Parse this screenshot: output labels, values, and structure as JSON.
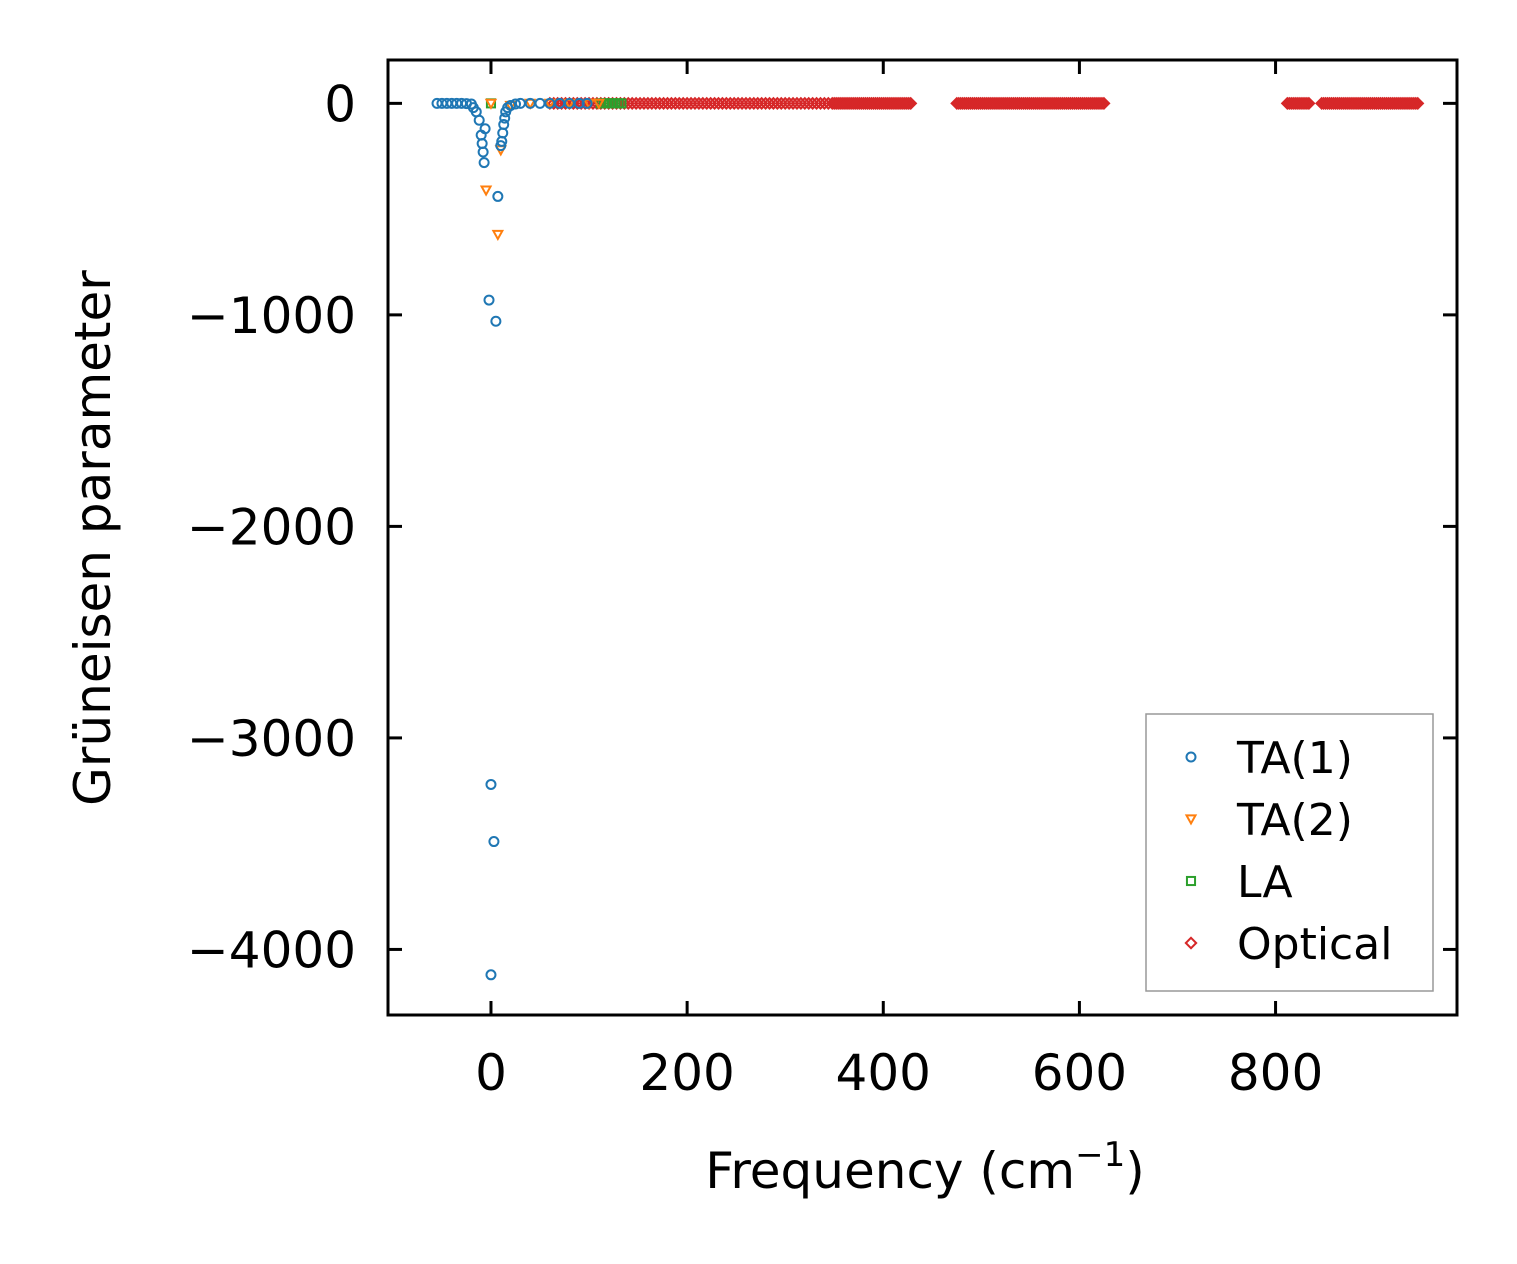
{
  "chart_data": {
    "type": "scatter",
    "title": "",
    "xlabel": "Frequency (cm",
    "xlabel_superscript": "−1",
    "xlabel_suffix": ")",
    "ylabel": "Grüneisen parameter",
    "xlim": [
      -105,
      985
    ],
    "ylim": [
      -4310,
      205
    ],
    "xticks": [
      0,
      200,
      400,
      600,
      800
    ],
    "xtick_labels": [
      "0",
      "200",
      "400",
      "600",
      "800"
    ],
    "yticks": [
      0,
      -1000,
      -2000,
      -3000,
      -4000
    ],
    "ytick_labels": [
      "0",
      "−1000",
      "−2000",
      "−3000",
      "−4000"
    ],
    "grid": false,
    "legend_position": "lower-right",
    "series": [
      {
        "name": "TA(1)",
        "marker": "circle",
        "color": "#1f77b4",
        "points": [
          [
            -55,
            0
          ],
          [
            -50,
            0
          ],
          [
            -45,
            0
          ],
          [
            -40,
            0
          ],
          [
            -35,
            0
          ],
          [
            -30,
            0
          ],
          [
            -25,
            -1
          ],
          [
            -20,
            -3
          ],
          [
            -18,
            -20
          ],
          [
            -15,
            -40
          ],
          [
            -12,
            -80
          ],
          [
            -10,
            -150
          ],
          [
            -9,
            -190
          ],
          [
            -8,
            -230
          ],
          [
            -7,
            -280
          ],
          [
            -6,
            -120
          ],
          [
            -2,
            -930
          ],
          [
            0,
            -3220
          ],
          [
            0,
            -4120
          ],
          [
            3,
            -3490
          ],
          [
            5,
            -1030
          ],
          [
            7,
            -440
          ],
          [
            10,
            -200
          ],
          [
            11,
            -180
          ],
          [
            12,
            -140
          ],
          [
            13,
            -100
          ],
          [
            14,
            -70
          ],
          [
            15,
            -40
          ],
          [
            17,
            -20
          ],
          [
            20,
            -10
          ],
          [
            25,
            -3
          ],
          [
            30,
            0
          ],
          [
            40,
            0
          ],
          [
            50,
            0
          ],
          [
            60,
            0
          ],
          [
            70,
            0
          ],
          [
            80,
            0
          ],
          [
            90,
            0
          ],
          [
            98,
            0
          ]
        ]
      },
      {
        "name": "TA(2)",
        "marker": "triangle-down",
        "color": "#ff7f0e",
        "points": [
          [
            -5,
            -410
          ],
          [
            0,
            0
          ],
          [
            7,
            -620
          ],
          [
            10,
            -220
          ],
          [
            20,
            -10
          ],
          [
            40,
            0
          ],
          [
            60,
            0
          ],
          [
            80,
            0
          ],
          [
            100,
            0
          ],
          [
            110,
            0
          ]
        ]
      },
      {
        "name": "LA",
        "marker": "square",
        "color": "#2ca02c",
        "points": [
          [
            0,
            0
          ],
          [
            112,
            0
          ],
          [
            115,
            0
          ],
          [
            118,
            0
          ],
          [
            121,
            0
          ],
          [
            124,
            0
          ],
          [
            127,
            0
          ],
          [
            130,
            0
          ],
          [
            133,
            0
          ]
        ]
      },
      {
        "name": "Optical",
        "marker": "diamond",
        "color": "#d62728",
        "ranges": [
          [
            60,
            345,
            4
          ],
          [
            348,
            428,
            2
          ],
          [
            475,
            625,
            2
          ],
          [
            812,
            835,
            2
          ],
          [
            847,
            945,
            2
          ]
        ]
      }
    ]
  }
}
